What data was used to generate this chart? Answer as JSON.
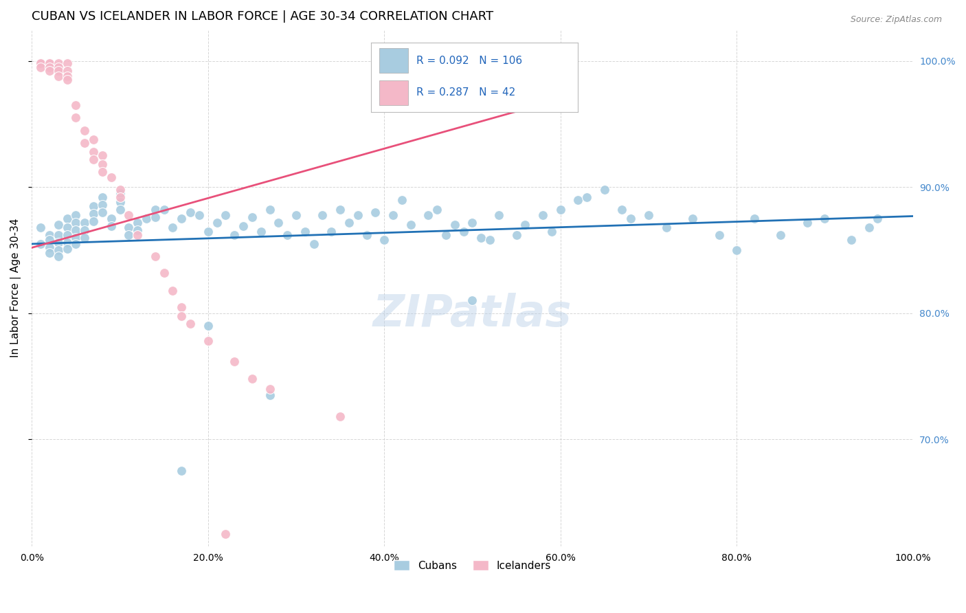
{
  "title": "CUBAN VS ICELANDER IN LABOR FORCE | AGE 30-34 CORRELATION CHART",
  "source": "Source: ZipAtlas.com",
  "ylabel": "In Labor Force | Age 30-34",
  "watermark": "ZIPatlas",
  "xlim": [
    0.0,
    1.0
  ],
  "ylim": [
    0.615,
    1.025
  ],
  "xtick_labels": [
    "0.0%",
    "20.0%",
    "40.0%",
    "60.0%",
    "80.0%",
    "100.0%"
  ],
  "xtick_positions": [
    0.0,
    0.2,
    0.4,
    0.6,
    0.8,
    1.0
  ],
  "ytick_labels": [
    "70.0%",
    "80.0%",
    "90.0%",
    "100.0%"
  ],
  "ytick_positions": [
    0.7,
    0.8,
    0.9,
    1.0
  ],
  "blue_color": "#a8cce0",
  "pink_color": "#f4b8c8",
  "blue_line_color": "#2171b5",
  "pink_line_color": "#e8507a",
  "right_tick_color": "#4488cc",
  "legend_text_color": "#2266bb",
  "r_blue": 0.092,
  "n_blue": 106,
  "r_pink": 0.287,
  "n_pink": 42,
  "blue_scatter_x": [
    0.01,
    0.01,
    0.02,
    0.02,
    0.02,
    0.02,
    0.03,
    0.03,
    0.03,
    0.03,
    0.03,
    0.04,
    0.04,
    0.04,
    0.04,
    0.04,
    0.05,
    0.05,
    0.05,
    0.05,
    0.05,
    0.06,
    0.06,
    0.06,
    0.07,
    0.07,
    0.07,
    0.08,
    0.08,
    0.08,
    0.09,
    0.09,
    0.1,
    0.1,
    0.1,
    0.11,
    0.11,
    0.12,
    0.12,
    0.13,
    0.14,
    0.14,
    0.15,
    0.16,
    0.17,
    0.18,
    0.19,
    0.2,
    0.21,
    0.22,
    0.23,
    0.24,
    0.25,
    0.26,
    0.27,
    0.28,
    0.29,
    0.3,
    0.31,
    0.32,
    0.33,
    0.34,
    0.35,
    0.36,
    0.37,
    0.38,
    0.39,
    0.4,
    0.41,
    0.42,
    0.43,
    0.45,
    0.46,
    0.47,
    0.48,
    0.49,
    0.5,
    0.51,
    0.52,
    0.53,
    0.55,
    0.56,
    0.58,
    0.59,
    0.6,
    0.62,
    0.63,
    0.65,
    0.67,
    0.68,
    0.7,
    0.72,
    0.75,
    0.78,
    0.8,
    0.82,
    0.85,
    0.88,
    0.9,
    0.93,
    0.95,
    0.96,
    0.17,
    0.27,
    0.5,
    0.2
  ],
  "blue_scatter_y": [
    0.868,
    0.855,
    0.862,
    0.858,
    0.852,
    0.848,
    0.87,
    0.862,
    0.856,
    0.85,
    0.845,
    0.875,
    0.868,
    0.862,
    0.856,
    0.851,
    0.878,
    0.872,
    0.866,
    0.86,
    0.855,
    0.872,
    0.866,
    0.86,
    0.885,
    0.879,
    0.873,
    0.892,
    0.886,
    0.88,
    0.875,
    0.869,
    0.895,
    0.888,
    0.882,
    0.868,
    0.862,
    0.872,
    0.866,
    0.875,
    0.882,
    0.876,
    0.882,
    0.868,
    0.875,
    0.88,
    0.878,
    0.865,
    0.872,
    0.878,
    0.862,
    0.869,
    0.876,
    0.865,
    0.882,
    0.872,
    0.862,
    0.878,
    0.865,
    0.855,
    0.878,
    0.865,
    0.882,
    0.872,
    0.878,
    0.862,
    0.88,
    0.858,
    0.878,
    0.89,
    0.87,
    0.878,
    0.882,
    0.862,
    0.87,
    0.865,
    0.872,
    0.86,
    0.858,
    0.878,
    0.862,
    0.87,
    0.878,
    0.865,
    0.882,
    0.89,
    0.892,
    0.898,
    0.882,
    0.875,
    0.878,
    0.868,
    0.875,
    0.862,
    0.85,
    0.875,
    0.862,
    0.872,
    0.875,
    0.858,
    0.868,
    0.875,
    0.675,
    0.735,
    0.81,
    0.79
  ],
  "pink_scatter_x": [
    0.01,
    0.01,
    0.01,
    0.02,
    0.02,
    0.02,
    0.02,
    0.03,
    0.03,
    0.03,
    0.03,
    0.04,
    0.04,
    0.04,
    0.04,
    0.05,
    0.05,
    0.06,
    0.06,
    0.07,
    0.07,
    0.07,
    0.08,
    0.08,
    0.08,
    0.09,
    0.1,
    0.1,
    0.11,
    0.12,
    0.14,
    0.15,
    0.16,
    0.17,
    0.17,
    0.18,
    0.2,
    0.23,
    0.25,
    0.27,
    0.35,
    0.22
  ],
  "pink_scatter_y": [
    0.998,
    0.998,
    0.995,
    0.998,
    0.998,
    0.995,
    0.992,
    0.998,
    0.995,
    0.992,
    0.988,
    0.998,
    0.992,
    0.988,
    0.985,
    0.965,
    0.955,
    0.945,
    0.935,
    0.938,
    0.928,
    0.922,
    0.925,
    0.918,
    0.912,
    0.908,
    0.898,
    0.892,
    0.878,
    0.862,
    0.845,
    0.832,
    0.818,
    0.805,
    0.798,
    0.792,
    0.778,
    0.762,
    0.748,
    0.74,
    0.718,
    0.625
  ],
  "blue_trend_x": [
    0.0,
    1.0
  ],
  "blue_trend_y": [
    0.855,
    0.877
  ],
  "pink_trend_x": [
    0.0,
    0.55
  ],
  "pink_trend_y": [
    0.852,
    0.96
  ],
  "grid_color": "#cccccc",
  "background_color": "#ffffff",
  "title_fontsize": 13,
  "label_fontsize": 11,
  "tick_fontsize": 10
}
